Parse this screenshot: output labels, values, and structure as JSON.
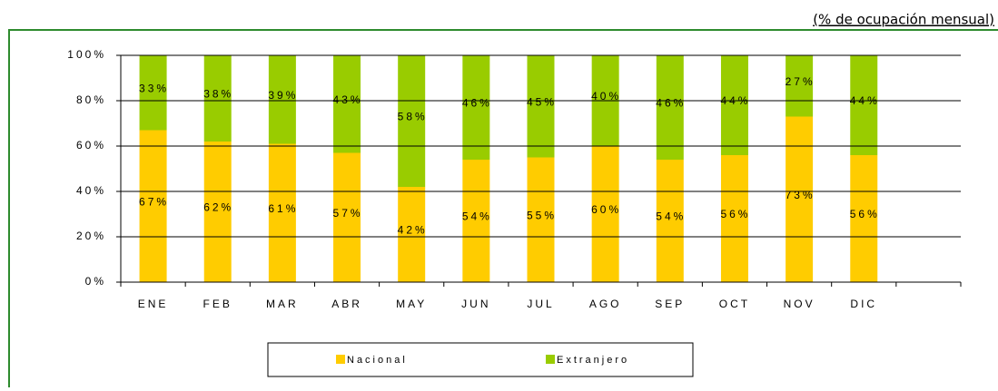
{
  "chart_data": {
    "type": "stacked_bar",
    "subtitle": "(% de ocupación mensual)",
    "categories": [
      "ENE",
      "FEB",
      "MAR",
      "ABR",
      "MAY",
      "JUN",
      "JUL",
      "AGO",
      "SEP",
      "OCT",
      "NOV",
      "DIC"
    ],
    "series": [
      {
        "name": "Nacional",
        "color": "#ffcc00",
        "values": [
          67,
          62,
          61,
          57,
          42,
          54,
          55,
          60,
          54,
          56,
          73,
          56
        ],
        "value_labels": [
          "67%",
          "62%",
          "61%",
          "57%",
          "42%",
          "54%",
          "55%",
          "60%",
          "54%",
          "56%",
          "73%",
          "56%"
        ]
      },
      {
        "name": "Extranjero",
        "color": "#99cc00",
        "values": [
          33,
          38,
          39,
          43,
          58,
          46,
          45,
          40,
          46,
          44,
          27,
          44
        ],
        "value_labels": [
          "33%",
          "38%",
          "39%",
          "43%",
          "58%",
          "46%",
          "45%",
          "40%",
          "46%",
          "44%",
          "27%",
          "44%"
        ]
      }
    ],
    "ylim": [
      0,
      100
    ],
    "yticks": [
      {
        "value": 0,
        "label": "0%"
      },
      {
        "value": 20,
        "label": "20%"
      },
      {
        "value": 40,
        "label": "40%"
      },
      {
        "value": 60,
        "label": "60%"
      },
      {
        "value": 80,
        "label": "80%"
      },
      {
        "value": 100,
        "label": "100%"
      }
    ],
    "grid": true,
    "legend": "bottom"
  }
}
